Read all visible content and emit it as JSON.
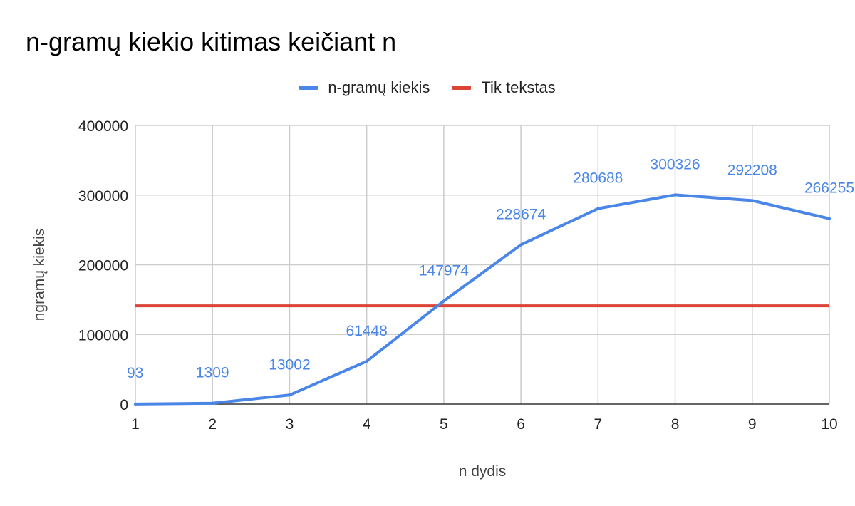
{
  "chart_data": {
    "type": "line",
    "title": "n-gramų kiekio kitimas keičiant n",
    "xlabel": "n dydis",
    "ylabel": "ngramų kiekis",
    "categories": [
      "1",
      "2",
      "3",
      "4",
      "5",
      "6",
      "7",
      "8",
      "9",
      "10"
    ],
    "ylim": [
      0,
      400000
    ],
    "yticks": [
      "0",
      "100000",
      "200000",
      "300000",
      "400000"
    ],
    "grid": true,
    "legend_position": "top",
    "series": [
      {
        "name": "n-gramų kiekis",
        "color": "#4A86E8",
        "values": [
          93,
          1309,
          13002,
          61448,
          147974,
          228674,
          280688,
          300326,
          292208,
          266255
        ],
        "data_labels": [
          "93",
          "1309",
          "13002",
          "61448",
          "147974",
          "228674",
          "280688",
          "300326",
          "292208",
          "266255"
        ]
      },
      {
        "name": "Tik tekstas",
        "color": "#DB4437",
        "values": [
          141000,
          141000,
          141000,
          141000,
          141000,
          141000,
          141000,
          141000,
          141000,
          141000
        ]
      }
    ]
  }
}
